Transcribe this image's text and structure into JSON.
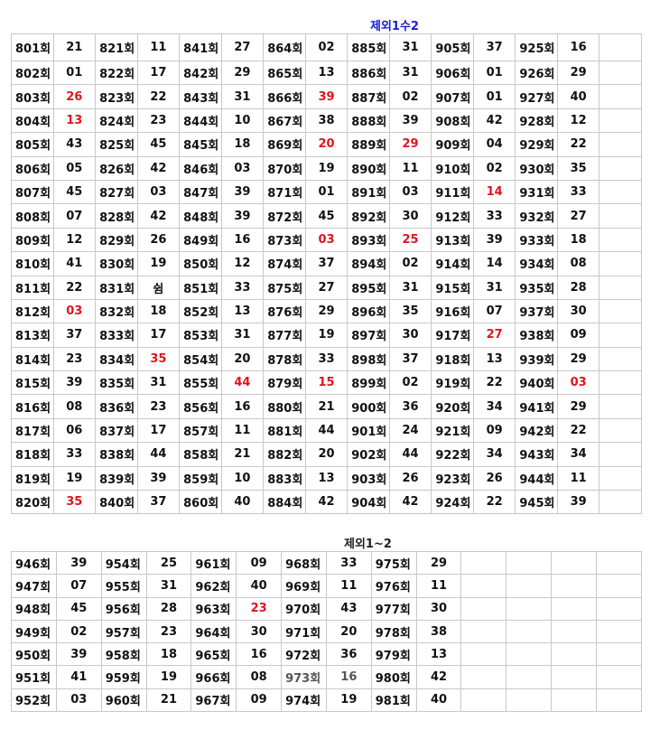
{
  "table1": {
    "title": "제외1수2",
    "title_color": "#1a1ad0",
    "highlight_color": "#e0141e",
    "columns": [
      [
        [
          "801회",
          "21"
        ],
        [
          "802회",
          "01"
        ],
        [
          "803회",
          "26",
          1
        ],
        [
          "804회",
          "13",
          1
        ],
        [
          "805회",
          "43"
        ],
        [
          "806회",
          "05"
        ],
        [
          "807회",
          "45"
        ],
        [
          "808회",
          "07"
        ],
        [
          "809회",
          "12"
        ],
        [
          "810회",
          "41"
        ],
        [
          "811회",
          "22"
        ],
        [
          "812회",
          "03",
          1
        ],
        [
          "813회",
          "37"
        ],
        [
          "814회",
          "23"
        ],
        [
          "815회",
          "39"
        ],
        [
          "816회",
          "08"
        ],
        [
          "817회",
          "06"
        ],
        [
          "818회",
          "33"
        ],
        [
          "819회",
          "19"
        ],
        [
          "820회",
          "35",
          1
        ]
      ],
      [
        [
          "821회",
          "11"
        ],
        [
          "822회",
          "17"
        ],
        [
          "823회",
          "22"
        ],
        [
          "824회",
          "23"
        ],
        [
          "825회",
          "45"
        ],
        [
          "826회",
          "42"
        ],
        [
          "827회",
          "03"
        ],
        [
          "828회",
          "42"
        ],
        [
          "829회",
          "26"
        ],
        [
          "830회",
          "19"
        ],
        [
          "831회",
          "쉼"
        ],
        [
          "832회",
          "18"
        ],
        [
          "833회",
          "17"
        ],
        [
          "834회",
          "35",
          1
        ],
        [
          "835회",
          "31"
        ],
        [
          "836회",
          "23"
        ],
        [
          "837회",
          "17"
        ],
        [
          "838회",
          "44"
        ],
        [
          "839회",
          "39"
        ],
        [
          "840회",
          "37"
        ]
      ],
      [
        [
          "841회",
          "27"
        ],
        [
          "842회",
          "29"
        ],
        [
          "843회",
          "31"
        ],
        [
          "844회",
          "10"
        ],
        [
          "845회",
          "18"
        ],
        [
          "846회",
          "03"
        ],
        [
          "847회",
          "39"
        ],
        [
          "848회",
          "39"
        ],
        [
          "849회",
          "16"
        ],
        [
          "850회",
          "12"
        ],
        [
          "851회",
          "33"
        ],
        [
          "852회",
          "13"
        ],
        [
          "853회",
          "31"
        ],
        [
          "854회",
          "20"
        ],
        [
          "855회",
          "44",
          1
        ],
        [
          "856회",
          "16"
        ],
        [
          "857회",
          "11"
        ],
        [
          "858회",
          "21"
        ],
        [
          "859회",
          "10"
        ],
        [
          "860회",
          "40"
        ]
      ],
      [
        [
          "864회",
          "02"
        ],
        [
          "865회",
          "13"
        ],
        [
          "866회",
          "39",
          1
        ],
        [
          "867회",
          "38"
        ],
        [
          "869회",
          "20",
          1
        ],
        [
          "870회",
          "19"
        ],
        [
          "871회",
          "01"
        ],
        [
          "872회",
          "45"
        ],
        [
          "873회",
          "03",
          1
        ],
        [
          "874회",
          "37"
        ],
        [
          "875회",
          "27"
        ],
        [
          "876회",
          "29"
        ],
        [
          "877회",
          "19"
        ],
        [
          "878회",
          "33"
        ],
        [
          "879회",
          "15",
          1
        ],
        [
          "880회",
          "21"
        ],
        [
          "881회",
          "44"
        ],
        [
          "882회",
          "20"
        ],
        [
          "883회",
          "13"
        ],
        [
          "884회",
          "42"
        ]
      ],
      [
        [
          "885회",
          "31"
        ],
        [
          "886회",
          "31"
        ],
        [
          "887회",
          "02"
        ],
        [
          "888회",
          "39"
        ],
        [
          "889회",
          "29",
          1
        ],
        [
          "890회",
          "11"
        ],
        [
          "891회",
          "03"
        ],
        [
          "892회",
          "30"
        ],
        [
          "893회",
          "25",
          1
        ],
        [
          "894회",
          "02"
        ],
        [
          "895회",
          "31"
        ],
        [
          "896회",
          "35"
        ],
        [
          "897회",
          "30"
        ],
        [
          "898회",
          "37"
        ],
        [
          "899회",
          "02"
        ],
        [
          "900회",
          "36"
        ],
        [
          "901회",
          "24"
        ],
        [
          "902회",
          "44"
        ],
        [
          "903회",
          "26"
        ],
        [
          "904회",
          "42"
        ]
      ],
      [
        [
          "905회",
          "37"
        ],
        [
          "906회",
          "01"
        ],
        [
          "907회",
          "01"
        ],
        [
          "908회",
          "42"
        ],
        [
          "909회",
          "04"
        ],
        [
          "910회",
          "02"
        ],
        [
          "911회",
          "14",
          1
        ],
        [
          "912회",
          "33"
        ],
        [
          "913회",
          "39"
        ],
        [
          "914회",
          "14"
        ],
        [
          "915회",
          "31"
        ],
        [
          "916회",
          "07"
        ],
        [
          "917회",
          "27",
          1
        ],
        [
          "918회",
          "13"
        ],
        [
          "919회",
          "22"
        ],
        [
          "920회",
          "34"
        ],
        [
          "921회",
          "09"
        ],
        [
          "922회",
          "34"
        ],
        [
          "923회",
          "26"
        ],
        [
          "924회",
          "22"
        ]
      ],
      [
        [
          "925회",
          "16"
        ],
        [
          "926회",
          "29"
        ],
        [
          "927회",
          "40"
        ],
        [
          "928회",
          "12"
        ],
        [
          "929회",
          "22"
        ],
        [
          "930회",
          "35"
        ],
        [
          "931회",
          "33"
        ],
        [
          "932회",
          "27"
        ],
        [
          "933회",
          "18"
        ],
        [
          "934회",
          "08"
        ],
        [
          "935회",
          "28"
        ],
        [
          "937회",
          "30"
        ],
        [
          "938회",
          "09"
        ],
        [
          "939회",
          "29"
        ],
        [
          "940회",
          "03",
          1
        ],
        [
          "941회",
          "29"
        ],
        [
          "942회",
          "22"
        ],
        [
          "943회",
          "34"
        ],
        [
          "944회",
          "11"
        ],
        [
          "945회",
          "39"
        ]
      ]
    ]
  },
  "table2": {
    "title": "제외1~2",
    "columns": [
      [
        [
          "946회",
          "39"
        ],
        [
          "947회",
          "07"
        ],
        [
          "948회",
          "45"
        ],
        [
          "949회",
          "02"
        ],
        [
          "950회",
          "39"
        ],
        [
          "951회",
          "41"
        ],
        [
          "952회",
          "03"
        ]
      ],
      [
        [
          "954회",
          "25"
        ],
        [
          "955회",
          "31"
        ],
        [
          "956회",
          "28"
        ],
        [
          "957회",
          "23"
        ],
        [
          "958회",
          "18"
        ],
        [
          "959회",
          "19"
        ],
        [
          "960회",
          "21"
        ]
      ],
      [
        [
          "961회",
          "09"
        ],
        [
          "962회",
          "40"
        ],
        [
          "963회",
          "23",
          1
        ],
        [
          "964회",
          "30"
        ],
        [
          "965회",
          "16"
        ],
        [
          "966회",
          "08"
        ],
        [
          "967회",
          "09"
        ]
      ],
      [
        [
          "968회",
          "33"
        ],
        [
          "969회",
          "11"
        ],
        [
          "970회",
          "43"
        ],
        [
          "971회",
          "20"
        ],
        [
          "972회",
          "36"
        ],
        [
          "973회",
          "16",
          2
        ],
        [
          "974회",
          "19"
        ]
      ],
      [
        [
          "975회",
          "29"
        ],
        [
          "976회",
          "11"
        ],
        [
          "977회",
          "30"
        ],
        [
          "978회",
          "38"
        ],
        [
          "979회",
          "13"
        ],
        [
          "980회",
          "42"
        ],
        [
          "981회",
          "40"
        ]
      ]
    ]
  }
}
